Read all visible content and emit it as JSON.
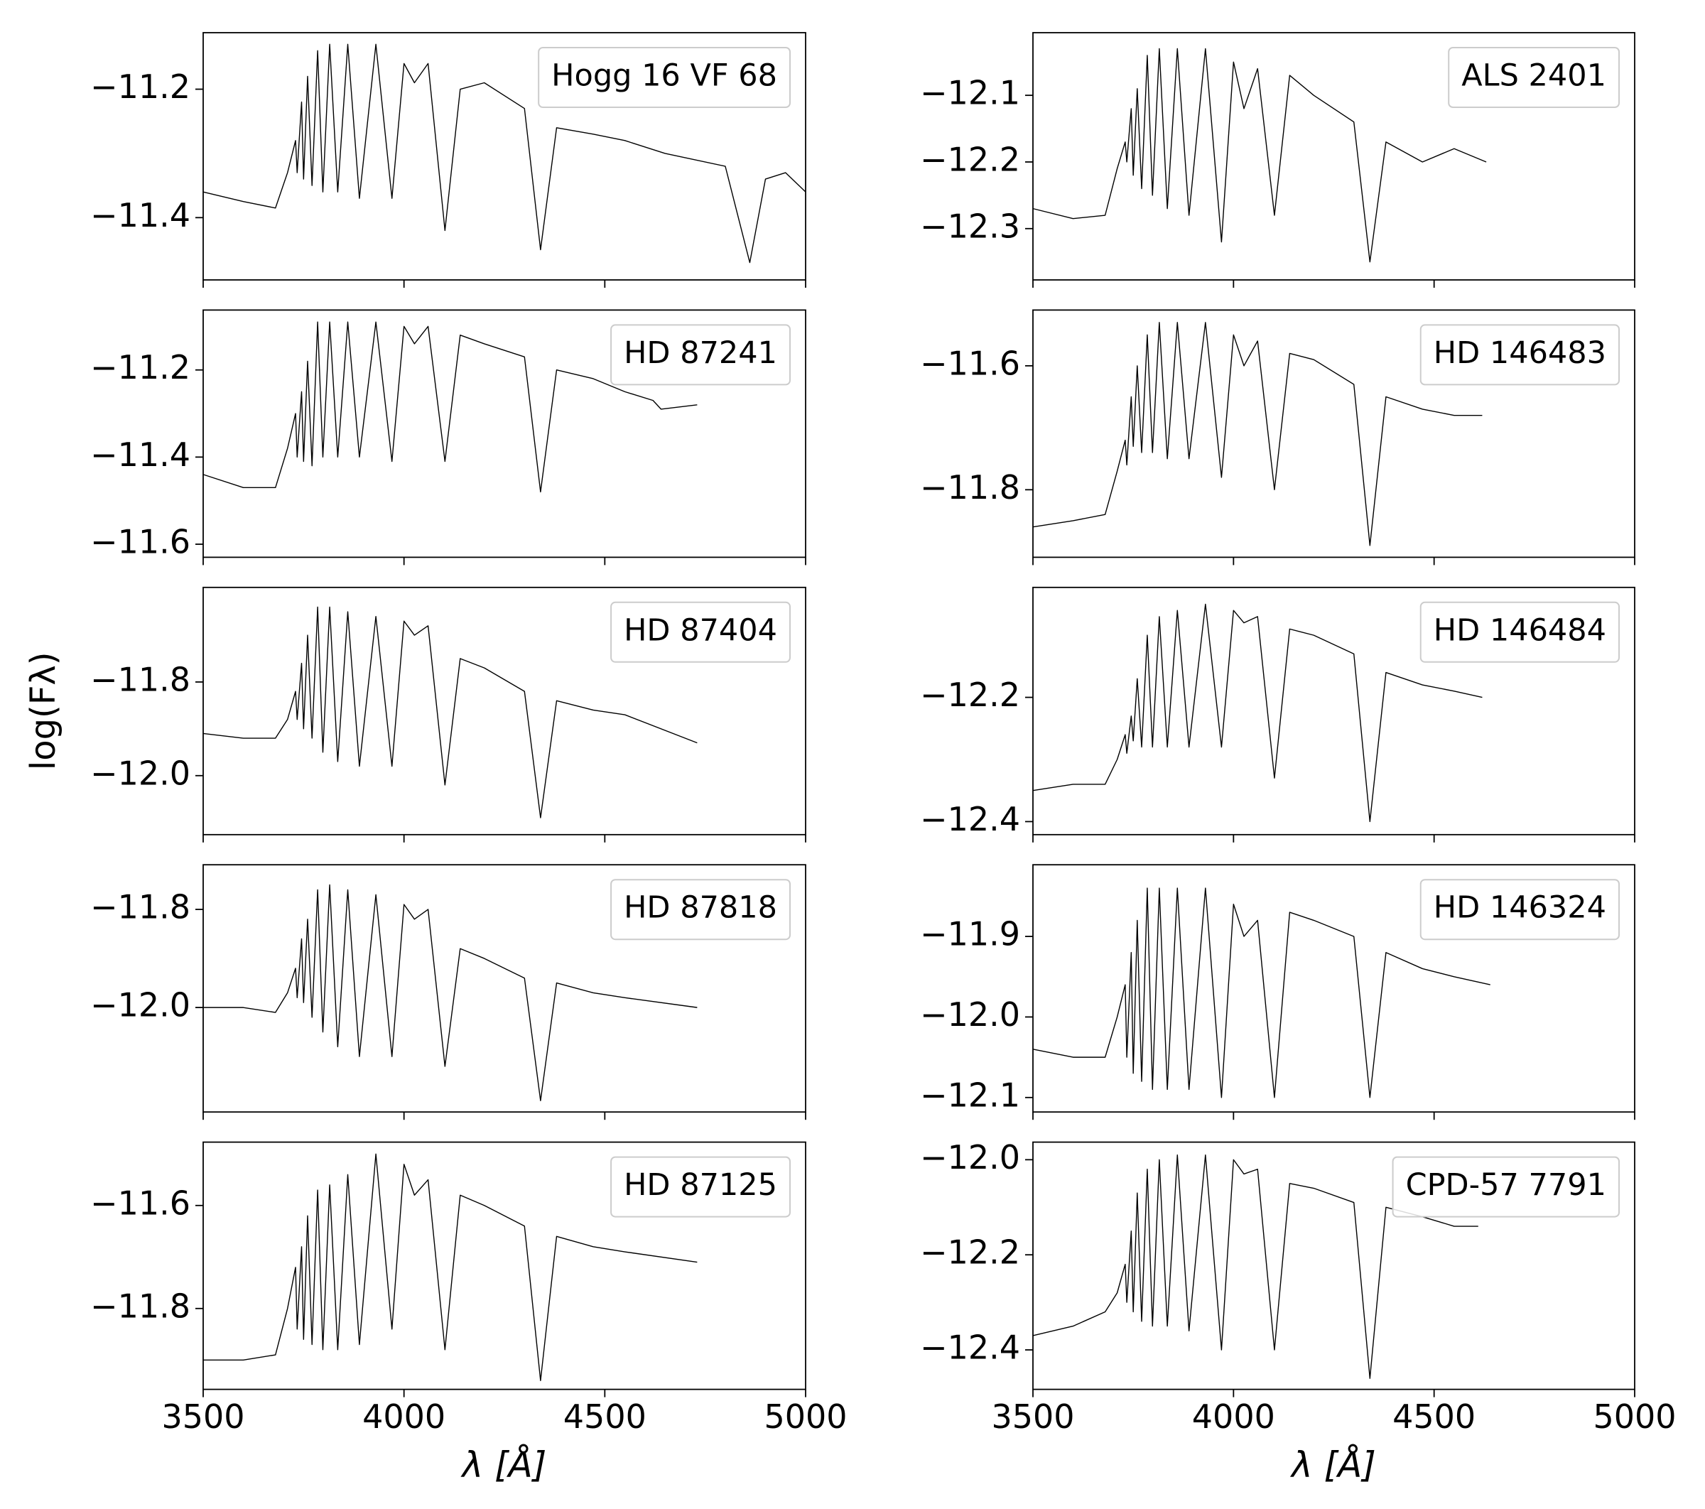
{
  "chart_data": [
    {
      "type": "line",
      "label": "Hogg 16 VF 68",
      "x": [
        3500,
        3600,
        3680,
        3710,
        3730,
        3734,
        3745,
        3750,
        3760,
        3771,
        3785,
        3798,
        3815,
        3835,
        3860,
        3889,
        3930,
        3970,
        4000,
        4026,
        4060,
        4102,
        4140,
        4200,
        4300,
        4340,
        4380,
        4471,
        4550,
        4650,
        4800,
        4861,
        4900,
        4950,
        5000
      ],
      "series": [
        {
          "color": "#000000",
          "values": [
            -11.36,
            -11.375,
            -11.385,
            -11.33,
            -11.28,
            -11.33,
            -11.22,
            -11.34,
            -11.18,
            -11.35,
            -11.14,
            -11.36,
            -11.13,
            -11.36,
            -11.13,
            -11.37,
            -11.13,
            -11.37,
            -11.16,
            -11.19,
            -11.16,
            -11.42,
            -11.2,
            -11.19,
            -11.23,
            -11.45,
            -11.26,
            -11.27,
            -11.28,
            -11.3,
            -11.32,
            -11.47,
            -11.34,
            -11.33,
            -11.36
          ]
        }
      ],
      "xlim": [
        3500,
        5000
      ],
      "xticks": [
        3500,
        4000,
        4500,
        5000
      ],
      "ylim": [
        -11.497,
        -11.112
      ],
      "yticks": [
        {
          "value": -11.2,
          "label": "−11.2"
        },
        {
          "value": -11.4,
          "label": "−11.4"
        }
      ]
    },
    {
      "type": "line",
      "label": "ALS 2401",
      "x": [
        3500,
        3600,
        3680,
        3710,
        3730,
        3734,
        3745,
        3750,
        3760,
        3771,
        3785,
        3798,
        3815,
        3835,
        3860,
        3889,
        3930,
        3970,
        4000,
        4026,
        4060,
        4102,
        4140,
        4200,
        4300,
        4340,
        4380,
        4471,
        4550,
        4630
      ],
      "series": [
        {
          "color": "#000000",
          "values": [
            -12.27,
            -12.285,
            -12.28,
            -12.21,
            -12.17,
            -12.2,
            -12.12,
            -12.22,
            -12.09,
            -12.24,
            -12.04,
            -12.25,
            -12.03,
            -12.27,
            -12.03,
            -12.28,
            -12.03,
            -12.32,
            -12.05,
            -12.12,
            -12.06,
            -12.28,
            -12.07,
            -12.1,
            -12.14,
            -12.35,
            -12.17,
            -12.2,
            -12.18,
            -12.2
          ]
        }
      ],
      "xlim": [
        3500,
        5000
      ],
      "xticks": [
        3500,
        4000,
        4500,
        5000
      ],
      "ylim": [
        -12.377,
        -12.006
      ],
      "yticks": [
        {
          "value": -12.1,
          "label": "−12.1"
        },
        {
          "value": -12.2,
          "label": "−12.2"
        },
        {
          "value": -12.3,
          "label": "−12.3"
        }
      ]
    },
    {
      "type": "line",
      "label": "HD 87241",
      "x": [
        3500,
        3600,
        3680,
        3710,
        3730,
        3734,
        3745,
        3750,
        3760,
        3771,
        3785,
        3798,
        3815,
        3835,
        3860,
        3889,
        3930,
        3970,
        4000,
        4026,
        4060,
        4102,
        4140,
        4200,
        4300,
        4340,
        4380,
        4471,
        4550,
        4620,
        4640,
        4730
      ],
      "series": [
        {
          "color": "#000000",
          "values": [
            -11.44,
            -11.47,
            -11.47,
            -11.38,
            -11.3,
            -11.4,
            -11.25,
            -11.41,
            -11.18,
            -11.42,
            -11.09,
            -11.4,
            -11.09,
            -11.4,
            -11.09,
            -11.4,
            -11.09,
            -11.41,
            -11.1,
            -11.14,
            -11.1,
            -11.41,
            -11.12,
            -11.14,
            -11.17,
            -11.48,
            -11.2,
            -11.22,
            -11.25,
            -11.27,
            -11.29,
            -11.28
          ]
        }
      ],
      "xlim": [
        3500,
        5000
      ],
      "xticks": [
        3500,
        4000,
        4500,
        5000
      ],
      "ylim": [
        -11.63,
        -11.0625
      ],
      "yticks": [
        {
          "value": -11.2,
          "label": "−11.2"
        },
        {
          "value": -11.4,
          "label": "−11.4"
        },
        {
          "value": -11.6,
          "label": "−11.6"
        }
      ]
    },
    {
      "type": "line",
      "label": "HD 146483",
      "x": [
        3500,
        3600,
        3680,
        3710,
        3730,
        3734,
        3745,
        3750,
        3760,
        3771,
        3785,
        3798,
        3815,
        3835,
        3860,
        3889,
        3930,
        3970,
        4000,
        4026,
        4060,
        4102,
        4140,
        4200,
        4300,
        4340,
        4380,
        4471,
        4550,
        4620
      ],
      "series": [
        {
          "color": "#000000",
          "values": [
            -11.86,
            -11.85,
            -11.84,
            -11.77,
            -11.72,
            -11.76,
            -11.65,
            -11.73,
            -11.6,
            -11.74,
            -11.55,
            -11.74,
            -11.53,
            -11.75,
            -11.53,
            -11.75,
            -11.53,
            -11.78,
            -11.55,
            -11.6,
            -11.56,
            -11.8,
            -11.58,
            -11.59,
            -11.63,
            -11.89,
            -11.65,
            -11.67,
            -11.68,
            -11.68
          ]
        }
      ],
      "xlim": [
        3500,
        5000
      ],
      "xticks": [
        3500,
        4000,
        4500,
        5000
      ],
      "ylim": [
        -11.909,
        -11.51
      ],
      "yticks": [
        {
          "value": -11.6,
          "label": "−11.6"
        },
        {
          "value": -11.8,
          "label": "−11.8"
        }
      ]
    },
    {
      "type": "line",
      "label": "HD 87404",
      "ylabel": "log(Fλ)",
      "x": [
        3500,
        3600,
        3680,
        3710,
        3730,
        3734,
        3745,
        3750,
        3760,
        3771,
        3785,
        3798,
        3815,
        3835,
        3860,
        3889,
        3930,
        3970,
        4000,
        4026,
        4060,
        4102,
        4140,
        4200,
        4300,
        4340,
        4380,
        4471,
        4550,
        4730
      ],
      "series": [
        {
          "color": "#000000",
          "values": [
            -11.91,
            -11.92,
            -11.92,
            -11.88,
            -11.82,
            -11.88,
            -11.76,
            -11.9,
            -11.7,
            -11.92,
            -11.64,
            -11.95,
            -11.64,
            -11.97,
            -11.65,
            -11.98,
            -11.66,
            -11.98,
            -11.67,
            -11.7,
            -11.68,
            -12.02,
            -11.75,
            -11.77,
            -11.82,
            -12.09,
            -11.84,
            -11.86,
            -11.87,
            -11.93
          ]
        }
      ],
      "xlim": [
        3500,
        5000
      ],
      "xticks": [
        3500,
        4000,
        4500,
        5000
      ],
      "ylim": [
        -12.126,
        -11.598
      ],
      "yticks": [
        {
          "value": -11.8,
          "label": "−11.8"
        },
        {
          "value": -12.0,
          "label": "−12.0"
        }
      ]
    },
    {
      "type": "line",
      "label": "HD 146484",
      "x": [
        3500,
        3600,
        3680,
        3710,
        3730,
        3734,
        3745,
        3750,
        3760,
        3771,
        3785,
        3798,
        3815,
        3835,
        3860,
        3889,
        3930,
        3970,
        4000,
        4026,
        4060,
        4102,
        4140,
        4200,
        4300,
        4340,
        4380,
        4471,
        4550,
        4620
      ],
      "series": [
        {
          "color": "#000000",
          "values": [
            -12.35,
            -12.34,
            -12.34,
            -12.3,
            -12.26,
            -12.29,
            -12.23,
            -12.27,
            -12.17,
            -12.28,
            -12.1,
            -12.28,
            -12.07,
            -12.28,
            -12.06,
            -12.28,
            -12.05,
            -12.28,
            -12.06,
            -12.08,
            -12.07,
            -12.33,
            -12.09,
            -12.1,
            -12.13,
            -12.4,
            -12.16,
            -12.18,
            -12.19,
            -12.2
          ]
        }
      ],
      "xlim": [
        3500,
        5000
      ],
      "xticks": [
        3500,
        4000,
        4500,
        5000
      ],
      "ylim": [
        -12.421,
        -12.023
      ],
      "yticks": [
        {
          "value": -12.2,
          "label": "−12.2"
        },
        {
          "value": -12.4,
          "label": "−12.4"
        }
      ]
    },
    {
      "type": "line",
      "label": "HD 87818",
      "x": [
        3500,
        3600,
        3680,
        3710,
        3730,
        3734,
        3745,
        3750,
        3760,
        3771,
        3785,
        3798,
        3815,
        3835,
        3860,
        3889,
        3930,
        3970,
        4000,
        4026,
        4060,
        4102,
        4140,
        4200,
        4300,
        4340,
        4380,
        4471,
        4550,
        4730
      ],
      "series": [
        {
          "color": "#000000",
          "values": [
            -12.0,
            -12.0,
            -12.01,
            -11.97,
            -11.92,
            -11.98,
            -11.86,
            -11.99,
            -11.82,
            -12.02,
            -11.76,
            -12.05,
            -11.75,
            -12.08,
            -11.76,
            -12.1,
            -11.77,
            -12.1,
            -11.79,
            -11.82,
            -11.8,
            -12.12,
            -11.88,
            -11.9,
            -11.94,
            -12.19,
            -11.95,
            -11.97,
            -11.98,
            -12.0
          ]
        }
      ],
      "xlim": [
        3500,
        5000
      ],
      "xticks": [
        3500,
        4000,
        4500,
        5000
      ],
      "ylim": [
        -12.213,
        -11.709
      ],
      "yticks": [
        {
          "value": -11.8,
          "label": "−11.8"
        },
        {
          "value": -12.0,
          "label": "−12.0"
        }
      ]
    },
    {
      "type": "line",
      "label": "HD 146324",
      "x": [
        3500,
        3600,
        3680,
        3710,
        3730,
        3734,
        3745,
        3750,
        3760,
        3771,
        3785,
        3798,
        3815,
        3835,
        3860,
        3889,
        3930,
        3970,
        4000,
        4026,
        4060,
        4102,
        4140,
        4200,
        4300,
        4340,
        4380,
        4471,
        4550,
        4640
      ],
      "series": [
        {
          "color": "#000000",
          "values": [
            -12.04,
            -12.05,
            -12.05,
            -12.0,
            -11.96,
            -12.05,
            -11.92,
            -12.07,
            -11.88,
            -12.08,
            -11.84,
            -12.09,
            -11.84,
            -12.09,
            -11.84,
            -12.09,
            -11.84,
            -12.1,
            -11.86,
            -11.9,
            -11.88,
            -12.1,
            -11.87,
            -11.88,
            -11.9,
            -12.1,
            -11.92,
            -11.94,
            -11.95,
            -11.96
          ]
        }
      ],
      "xlim": [
        3500,
        5000
      ],
      "xticks": [
        3500,
        4000,
        4500,
        5000
      ],
      "ylim": [
        -12.118,
        -11.811
      ],
      "yticks": [
        {
          "value": -11.9,
          "label": "−11.9"
        },
        {
          "value": -12.0,
          "label": "−12.0"
        },
        {
          "value": -12.1,
          "label": "−12.1"
        }
      ]
    },
    {
      "type": "line",
      "label": "HD 87125",
      "xlabel": "λ [Å]",
      "x": [
        3500,
        3600,
        3680,
        3710,
        3730,
        3734,
        3745,
        3750,
        3760,
        3771,
        3785,
        3798,
        3815,
        3835,
        3860,
        3889,
        3930,
        3970,
        4000,
        4026,
        4060,
        4102,
        4140,
        4200,
        4300,
        4340,
        4380,
        4471,
        4550,
        4730
      ],
      "series": [
        {
          "color": "#000000",
          "values": [
            -11.9,
            -11.9,
            -11.89,
            -11.8,
            -11.72,
            -11.84,
            -11.68,
            -11.86,
            -11.62,
            -11.87,
            -11.57,
            -11.88,
            -11.56,
            -11.88,
            -11.54,
            -11.87,
            -11.5,
            -11.84,
            -11.52,
            -11.58,
            -11.55,
            -11.88,
            -11.58,
            -11.6,
            -11.64,
            -11.94,
            -11.66,
            -11.68,
            -11.69,
            -11.71
          ]
        }
      ],
      "xlim": [
        3500,
        5000
      ],
      "xticks": [
        3500,
        4000,
        4500,
        5000
      ],
      "ylim": [
        -11.957,
        -11.477
      ],
      "yticks": [
        {
          "value": -11.6,
          "label": "−11.6"
        },
        {
          "value": -11.8,
          "label": "−11.8"
        }
      ]
    },
    {
      "type": "line",
      "label": "CPD-57 7791",
      "xlabel": "λ [Å]",
      "x": [
        3500,
        3600,
        3680,
        3710,
        3730,
        3734,
        3745,
        3750,
        3760,
        3771,
        3785,
        3798,
        3815,
        3835,
        3860,
        3889,
        3930,
        3970,
        4000,
        4026,
        4060,
        4102,
        4140,
        4200,
        4300,
        4340,
        4380,
        4471,
        4550,
        4610
      ],
      "series": [
        {
          "color": "#000000",
          "values": [
            -12.37,
            -12.35,
            -12.32,
            -12.28,
            -12.22,
            -12.3,
            -12.15,
            -12.32,
            -12.07,
            -12.34,
            -12.02,
            -12.35,
            -12.0,
            -12.35,
            -11.99,
            -12.36,
            -11.99,
            -12.4,
            -12.0,
            -12.03,
            -12.02,
            -12.4,
            -12.05,
            -12.06,
            -12.09,
            -12.46,
            -12.1,
            -12.12,
            -12.14,
            -12.14
          ]
        }
      ],
      "xlim": [
        3500,
        5000
      ],
      "xticks": [
        3500,
        4000,
        4500,
        5000
      ],
      "ylim": [
        -12.483,
        -11.963
      ],
      "yticks": [
        {
          "value": -12.0,
          "label": "−12.0"
        },
        {
          "value": -12.2,
          "label": "−12.2"
        },
        {
          "value": -12.4,
          "label": "−12.4"
        }
      ]
    }
  ]
}
